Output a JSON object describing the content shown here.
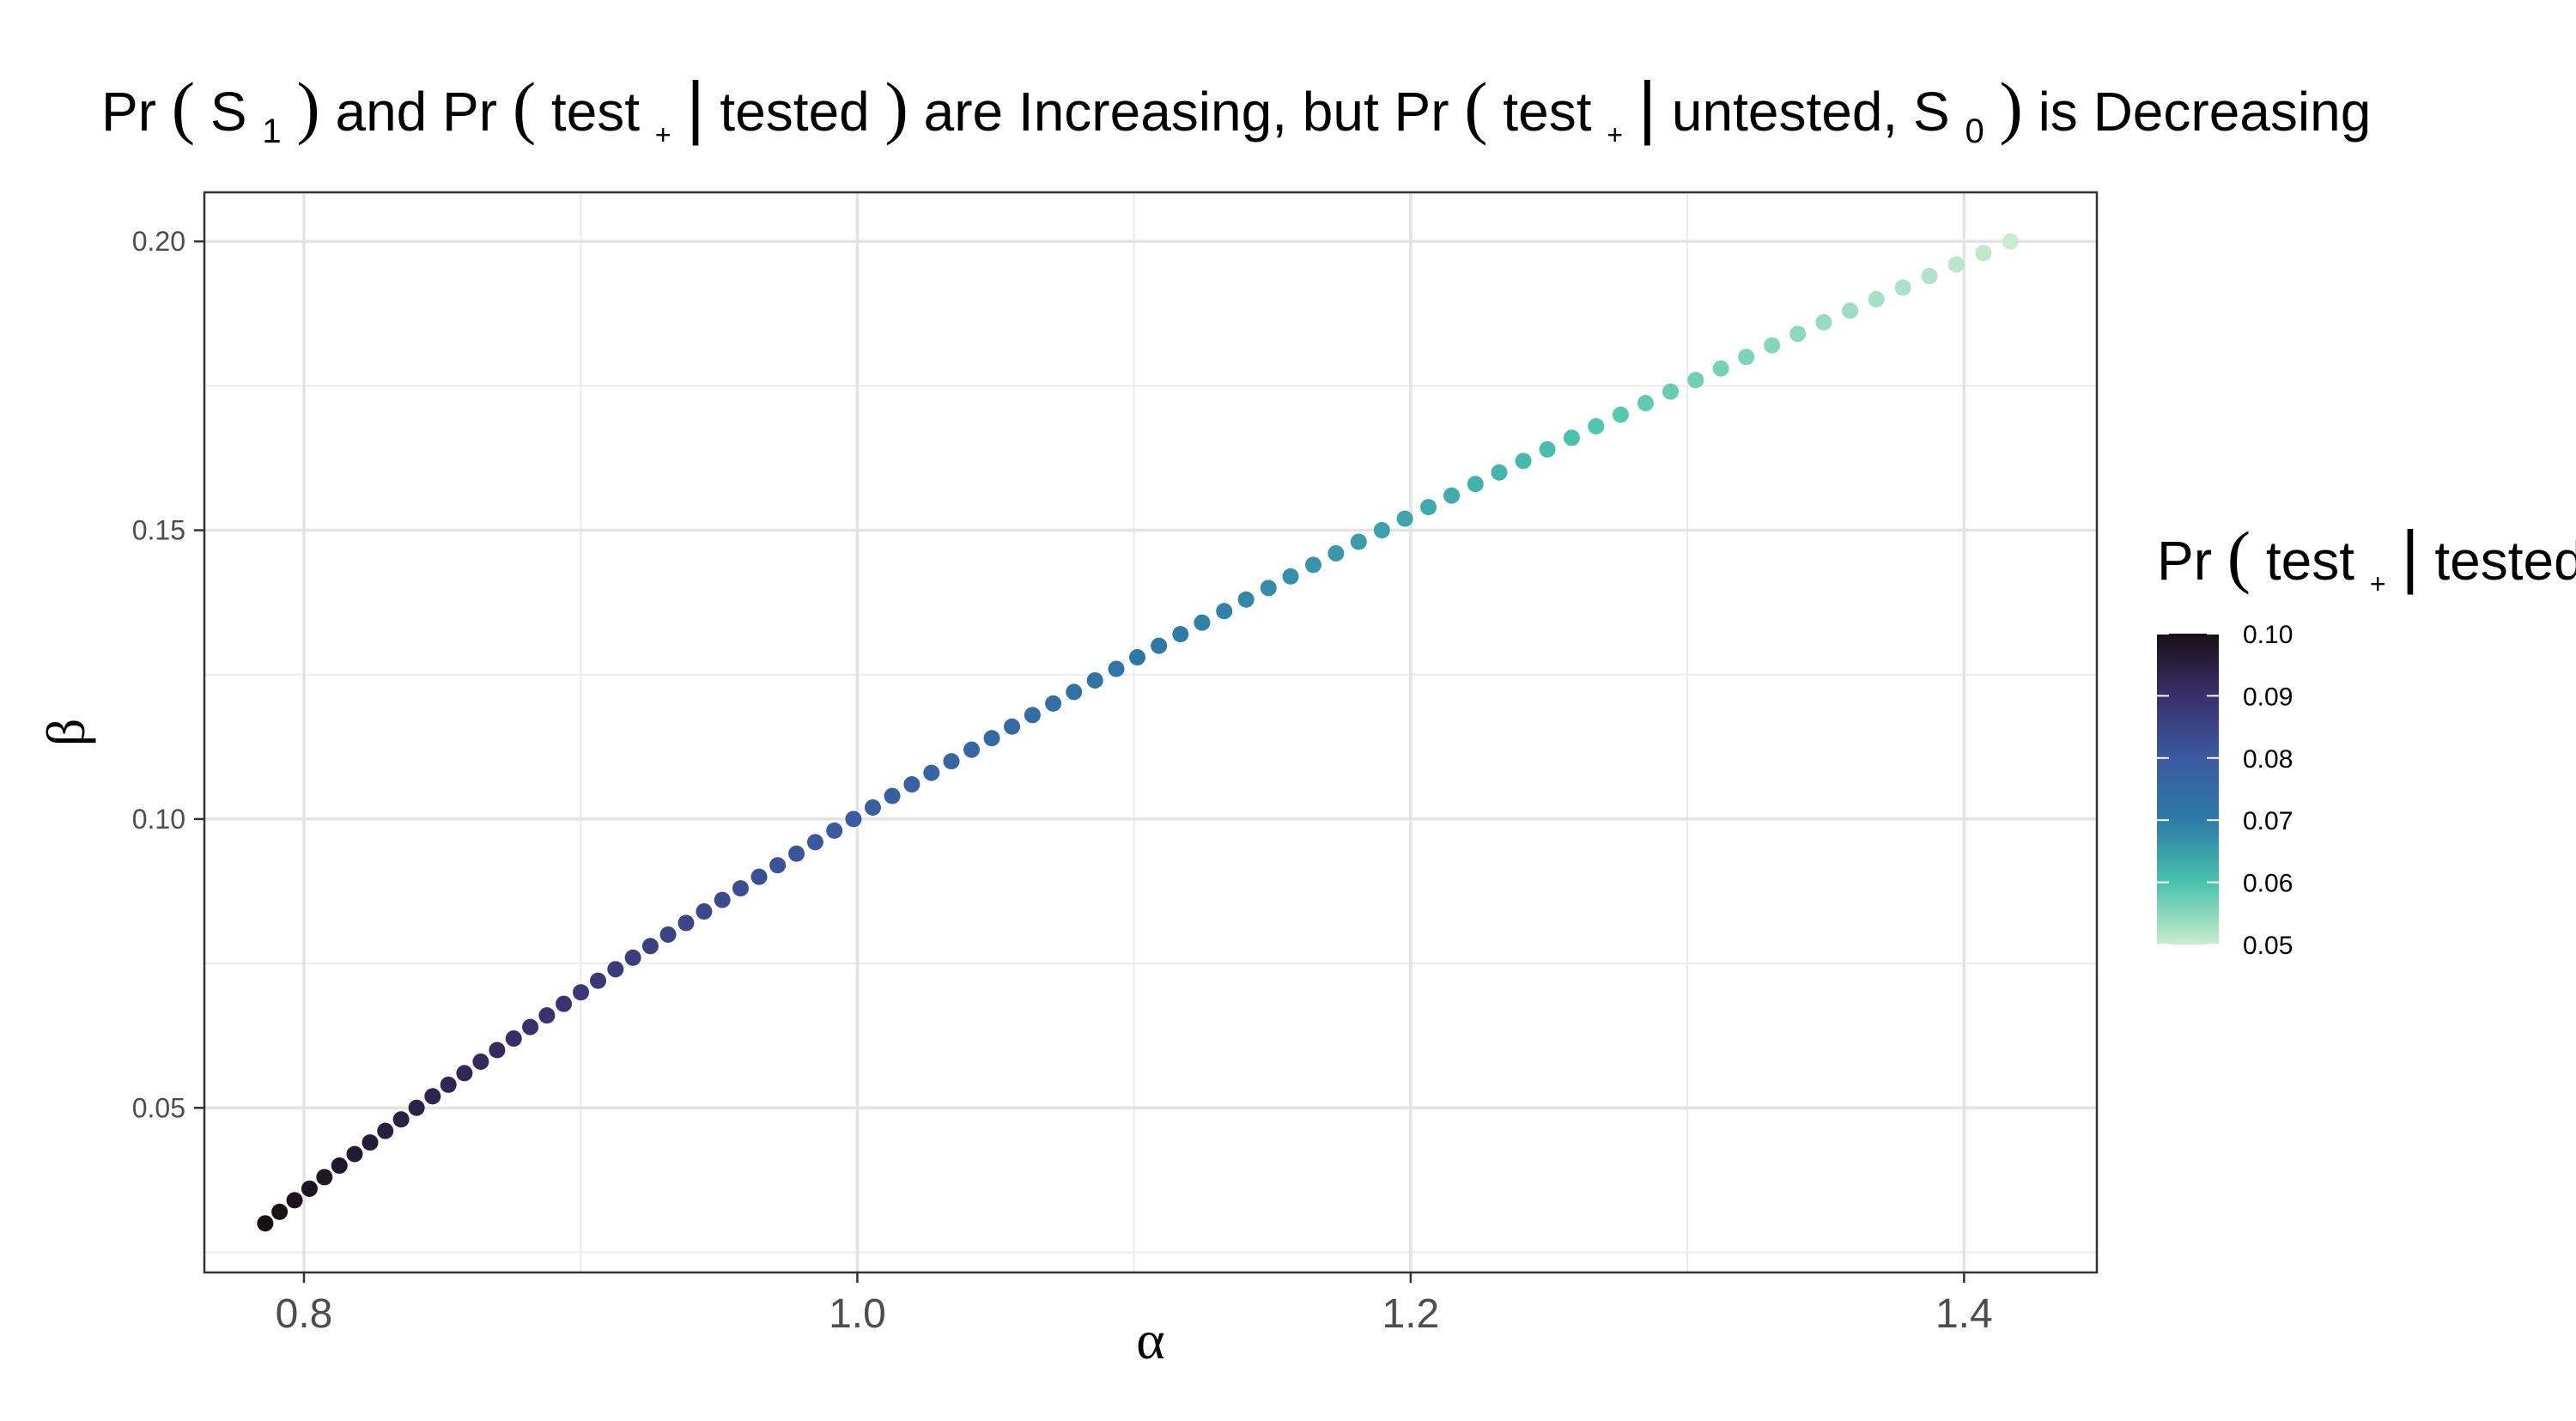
{
  "chart_data": {
    "type": "scatter",
    "title": {
      "prefix": "Pr",
      "s1_base": "S",
      "s1_sub": "1",
      "and": " and ",
      "pr2": "Pr",
      "test": "test",
      "plus": "+",
      "tested": "tested",
      "are_increasing_but": " are Increasing, but ",
      "pr3": "Pr",
      "untested": "untested, ",
      "s0_base": "S",
      "s0_sub": "0",
      "is_decreasing": " is Decreasing"
    },
    "xlabel": "α",
    "ylabel": "β",
    "xlim": [
      0.764,
      1.448
    ],
    "ylim": [
      0.0215,
      0.2085
    ],
    "x_ticks": [
      0.8,
      1.0,
      1.2,
      1.4
    ],
    "x_tick_labels": [
      "0.8",
      "1.0",
      "1.2",
      "1.4"
    ],
    "y_ticks": [
      0.05,
      0.1,
      0.15,
      0.2
    ],
    "y_tick_labels": [
      "0.05",
      "0.10",
      "0.15",
      "0.20"
    ],
    "grid": true,
    "legend": {
      "placement": "right",
      "title": {
        "pr": "Pr",
        "test": "test",
        "plus": "+",
        "tested": "tested"
      },
      "range": [
        0.05,
        0.1
      ],
      "ticks": [
        0.1,
        0.09,
        0.08,
        0.07,
        0.06,
        0.05
      ],
      "tick_labels": [
        "0.10",
        "0.09",
        "0.08",
        "0.07",
        "0.06",
        "0.05"
      ]
    },
    "colorscale": [
      {
        "value": 0.05,
        "color": "#c8eccd"
      },
      {
        "value": 0.06,
        "color": "#49c2ad"
      },
      {
        "value": 0.07,
        "color": "#2d7ba7"
      },
      {
        "value": 0.08,
        "color": "#3b5aa0"
      },
      {
        "value": 0.09,
        "color": "#3a2f6c"
      },
      {
        "value": 0.1,
        "color": "#180f14"
      }
    ],
    "series": {
      "alpha": [
        0.786,
        0.7912,
        0.7966,
        0.802,
        0.8074,
        0.8128,
        0.8183,
        0.8239,
        0.8294,
        0.8351,
        0.8407,
        0.8465,
        0.8522,
        0.858,
        0.8639,
        0.8698,
        0.8758,
        0.8818,
        0.8878,
        0.8939,
        0.9001,
        0.9063,
        0.9126,
        0.9189,
        0.9252,
        0.9316,
        0.9381,
        0.9446,
        0.9512,
        0.9578,
        0.9645,
        0.9712,
        0.978,
        0.9848,
        0.9917,
        0.9986,
        1.0056,
        1.0126,
        1.0197,
        1.0268,
        1.034,
        1.0413,
        1.0486,
        1.0559,
        1.0633,
        1.0708,
        1.0783,
        1.0859,
        1.0936,
        1.1012,
        1.109,
        1.1168,
        1.1246,
        1.1326,
        1.1405,
        1.1486,
        1.1566,
        1.1648,
        1.173,
        1.1812,
        1.1896,
        1.1979,
        1.2064,
        1.2148,
        1.2234,
        1.232,
        1.2407,
        1.2494,
        1.2582,
        1.267,
        1.2759,
        1.2849,
        1.2939,
        1.303,
        1.3121,
        1.3213,
        1.3306,
        1.3399,
        1.3493,
        1.3588,
        1.3683,
        1.3779,
        1.3875,
        1.3972,
        1.407,
        1.4168
      ],
      "beta": [
        0.03,
        0.032,
        0.034,
        0.036,
        0.038,
        0.04,
        0.042,
        0.044,
        0.046,
        0.048,
        0.05,
        0.052,
        0.054,
        0.056,
        0.058,
        0.06,
        0.062,
        0.064,
        0.066,
        0.068,
        0.07,
        0.072,
        0.074,
        0.076,
        0.078,
        0.08,
        0.082,
        0.084,
        0.086,
        0.088,
        0.09,
        0.092,
        0.094,
        0.096,
        0.098,
        0.1,
        0.102,
        0.104,
        0.106,
        0.108,
        0.11,
        0.112,
        0.114,
        0.116,
        0.118,
        0.12,
        0.122,
        0.124,
        0.126,
        0.128,
        0.13,
        0.132,
        0.134,
        0.136,
        0.138,
        0.14,
        0.142,
        0.144,
        0.146,
        0.148,
        0.15,
        0.152,
        0.154,
        0.156,
        0.158,
        0.16,
        0.162,
        0.164,
        0.166,
        0.168,
        0.17,
        0.172,
        0.174,
        0.176,
        0.178,
        0.18,
        0.182,
        0.184,
        0.186,
        0.188,
        0.19,
        0.192,
        0.194,
        0.196,
        0.198,
        0.2
      ],
      "pr_test_pos_given_tested": [
        0.1,
        0.0994,
        0.0988,
        0.0982,
        0.0976,
        0.0971,
        0.0965,
        0.0959,
        0.0953,
        0.0947,
        0.0941,
        0.0935,
        0.0929,
        0.0924,
        0.0918,
        0.0912,
        0.0906,
        0.09,
        0.0894,
        0.0888,
        0.0882,
        0.0876,
        0.0871,
        0.0865,
        0.0859,
        0.0853,
        0.0847,
        0.0841,
        0.0835,
        0.0829,
        0.0824,
        0.0818,
        0.0812,
        0.0806,
        0.08,
        0.0794,
        0.0788,
        0.0782,
        0.0776,
        0.0771,
        0.0765,
        0.0759,
        0.0753,
        0.0747,
        0.0741,
        0.0735,
        0.0729,
        0.0724,
        0.0718,
        0.0712,
        0.0706,
        0.07,
        0.0694,
        0.0688,
        0.0682,
        0.0676,
        0.0671,
        0.0665,
        0.0659,
        0.0653,
        0.0647,
        0.0641,
        0.0635,
        0.0629,
        0.0624,
        0.0618,
        0.0612,
        0.0606,
        0.06,
        0.0594,
        0.0588,
        0.0582,
        0.0576,
        0.0571,
        0.0565,
        0.0559,
        0.0553,
        0.0547,
        0.0541,
        0.0535,
        0.0529,
        0.0524,
        0.0518,
        0.0512,
        0.0506,
        0.05
      ]
    }
  }
}
